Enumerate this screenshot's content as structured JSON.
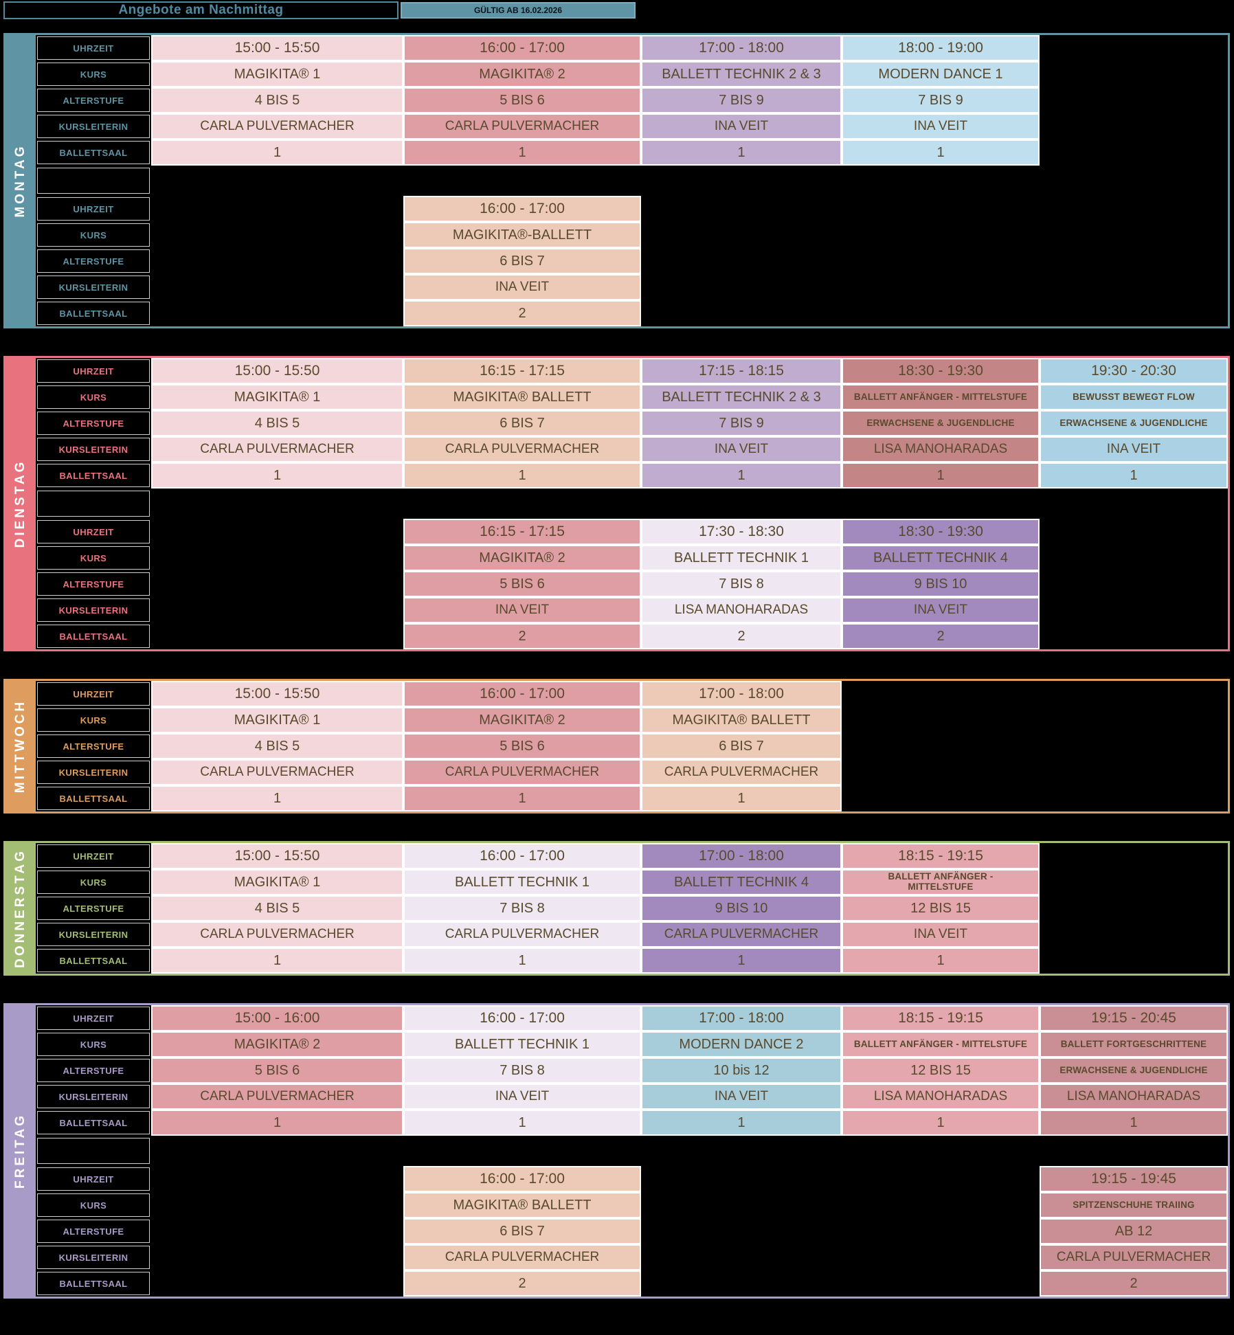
{
  "header": {
    "title": "Angebote am Nachmittag",
    "valid_label": "GÜLTIG AB 16.02.2026"
  },
  "row_labels": [
    "UHRZEIT",
    "KURS",
    "ALTERSTUFE",
    "KURSLEITERIN",
    "BALLETTSAAL"
  ],
  "days": [
    {
      "name": "MONTAG",
      "color": "#5e94a4",
      "blocks": [
        {
          "courses": [
            {
              "col": 1,
              "color": "#f4d7da",
              "time": "15:00 - 15:50",
              "course": "MAGIKITA® 1",
              "age": "4 BIS 5",
              "teacher": "CARLA PULVERMACHER",
              "room": "1"
            },
            {
              "col": 2,
              "color": "#df9da4",
              "time": "16:00 - 17:00",
              "course": "MAGIKITA® 2",
              "age": "5 BIS 6",
              "teacher": "CARLA PULVERMACHER",
              "room": "1"
            },
            {
              "col": 3,
              "color": "#bfaccf",
              "time": "17:00 - 18:00",
              "course": "BALLETT TECHNIK 2 & 3",
              "age": "7 BIS 9",
              "teacher": "INA VEIT",
              "room": "1"
            },
            {
              "col": 4,
              "color": "#bfdfee",
              "time": "18:00 - 19:00",
              "course": "MODERN DANCE 1",
              "age": "7 BIS 9",
              "teacher": "INA VEIT",
              "room": "1"
            }
          ]
        },
        {
          "courses": [
            {
              "col": 2,
              "color": "#edcab7",
              "time": "16:00 - 17:00",
              "course": "MAGIKITA®-BALLETT",
              "age": "6 BIS 7",
              "teacher": "INA VEIT",
              "room": "2"
            }
          ]
        }
      ]
    },
    {
      "name": "DIENSTAG",
      "color": "#e8737e",
      "blocks": [
        {
          "courses": [
            {
              "col": 1,
              "color": "#f4d7da",
              "time": "15:00 - 15:50",
              "course": "MAGIKITA® 1",
              "age": "4 BIS 5",
              "teacher": "CARLA PULVERMACHER",
              "room": "1"
            },
            {
              "col": 2,
              "color": "#edcab7",
              "time": "16:15 - 17:15",
              "course": "MAGIKITA® BALLETT",
              "age": "6 BIS 7",
              "teacher": "CARLA PULVERMACHER",
              "room": "1"
            },
            {
              "col": 3,
              "color": "#bfaccf",
              "time": "17:15 - 18:15",
              "course": "BALLETT TECHNIK 2 & 3",
              "age": "7 BIS 9",
              "teacher": "INA VEIT",
              "room": "1"
            },
            {
              "col": 4,
              "color": "#c48587",
              "time": "18:30 - 19:30",
              "course": "BALLETT ANFÄNGER - MITTELSTUFE",
              "age": "ERWACHSENE & JUGENDLICHE",
              "teacher": "LISA MANOHARADAS",
              "room": "1",
              "small_fields": [
                "course",
                "age"
              ]
            },
            {
              "col": 5,
              "color": "#aad2e4",
              "time": "19:30 - 20:30",
              "course": "BEWUSST BEWEGT FLOW",
              "age": "ERWACHSENE & JUGENDLICHE",
              "teacher": "INA VEIT",
              "room": "1",
              "small_fields": [
                "course",
                "age"
              ]
            }
          ]
        },
        {
          "courses": [
            {
              "col": 2,
              "color": "#df9da4",
              "time": "16:15 - 17:15",
              "course": "MAGIKITA® 2",
              "age": "5 BIS 6",
              "teacher": "INA VEIT",
              "room": "2"
            },
            {
              "col": 3,
              "color": "#efe7f1",
              "time": "17:30 - 18:30",
              "course": "BALLETT TECHNIK 1",
              "age": "7 BIS 8",
              "teacher": "LISA MANOHARADAS",
              "room": "2"
            },
            {
              "col": 4,
              "color": "#a28abf",
              "time": "18:30 - 19:30",
              "course": "BALLETT TECHNIK 4",
              "age": "9 BIS 10",
              "teacher": "INA VEIT",
              "room": "2"
            }
          ]
        }
      ]
    },
    {
      "name": "MITTWOCH",
      "color": "#de9d5e",
      "blocks": [
        {
          "courses": [
            {
              "col": 1,
              "color": "#f4d7da",
              "time": "15:00 - 15:50",
              "course": "MAGIKITA® 1",
              "age": "4 BIS 5",
              "teacher": "CARLA PULVERMACHER",
              "room": "1"
            },
            {
              "col": 2,
              "color": "#df9da4",
              "time": "16:00 - 17:00",
              "course": "MAGIKITA® 2",
              "age": "5 BIS 6",
              "teacher": "CARLA PULVERMACHER",
              "room": "1"
            },
            {
              "col": 3,
              "color": "#edcab7",
              "time": "17:00 - 18:00",
              "course": "MAGIKITA® BALLETT",
              "age": "6 BIS 7",
              "teacher": "CARLA PULVERMACHER",
              "room": "1"
            }
          ]
        }
      ]
    },
    {
      "name": "DONNERSTAG",
      "color": "#a4bd74",
      "blocks": [
        {
          "courses": [
            {
              "col": 1,
              "color": "#f4d7da",
              "time": "15:00 - 15:50",
              "course": "MAGIKITA® 1",
              "age": "4 BIS 5",
              "teacher": "CARLA PULVERMACHER",
              "room": "1"
            },
            {
              "col": 2,
              "color": "#efe7f1",
              "time": "16:00 - 17:00",
              "course": "BALLETT TECHNIK 1",
              "age": "7 BIS 8",
              "teacher": "CARLA PULVERMACHER",
              "room": "1"
            },
            {
              "col": 3,
              "color": "#a28abf",
              "time": "17:00 - 18:00",
              "course": "BALLETT TECHNIK 4",
              "age": "9 BIS 10",
              "teacher": "CARLA PULVERMACHER",
              "room": "1"
            },
            {
              "col": 4,
              "color": "#e3a7ad",
              "time": "18:15 - 19:15",
              "course": "BALLETT ANFÄNGER -\nMITTELSTUFE",
              "age": "12 BIS 15",
              "teacher": "INA VEIT",
              "room": "1",
              "small_fields": [
                "course"
              ]
            }
          ]
        }
      ]
    },
    {
      "name": "FREITAG",
      "color": "#a99bc7",
      "blocks": [
        {
          "courses": [
            {
              "col": 1,
              "color": "#df9da4",
              "time": "15:00 - 16:00",
              "course": "MAGIKITA® 2",
              "age": "5 BIS 6",
              "teacher": "CARLA PULVERMACHER",
              "room": "1"
            },
            {
              "col": 2,
              "color": "#efe7f1",
              "time": "16:00 - 17:00",
              "course": "BALLETT TECHNIK 1",
              "age": "7 BIS 8",
              "teacher": "INA VEIT",
              "room": "1"
            },
            {
              "col": 3,
              "color": "#a7ccda",
              "time": "17:00 - 18:00",
              "course": "MODERN DANCE 2",
              "age": "10 bis 12",
              "teacher": "INA VEIT",
              "room": "1"
            },
            {
              "col": 4,
              "color": "#e3a7ad",
              "time": "18:15 - 19:15",
              "course": "BALLETT ANFÄNGER - MITTELSTUFE",
              "age": "12 BIS 15",
              "teacher": "LISA MANOHARADAS",
              "room": "1",
              "small_fields": [
                "course"
              ]
            },
            {
              "col": 5,
              "color": "#ca8f94",
              "time": "19:15 - 20:45",
              "course": "BALLETT FORTGESCHRITTENE",
              "age": "ERWACHSENE & JUGENDLICHE",
              "teacher": "LISA MANOHARADAS",
              "room": "1",
              "small_fields": [
                "course",
                "age"
              ]
            }
          ]
        },
        {
          "courses": [
            {
              "col": 2,
              "color": "#edcab7",
              "time": "16:00 - 17:00",
              "course": "MAGIKITA® BALLETT",
              "age": "6 BIS 7",
              "teacher": "CARLA PULVERMACHER",
              "room": "2"
            },
            {
              "col": 5,
              "color": "#ca8f94",
              "time": "19:15 - 19:45",
              "course": "SPITZENSCHUHE TRAIING",
              "age": "AB 12",
              "teacher": "CARLA PULVERMACHER",
              "room": "2",
              "small_fields": [
                "course"
              ]
            }
          ]
        }
      ]
    }
  ]
}
